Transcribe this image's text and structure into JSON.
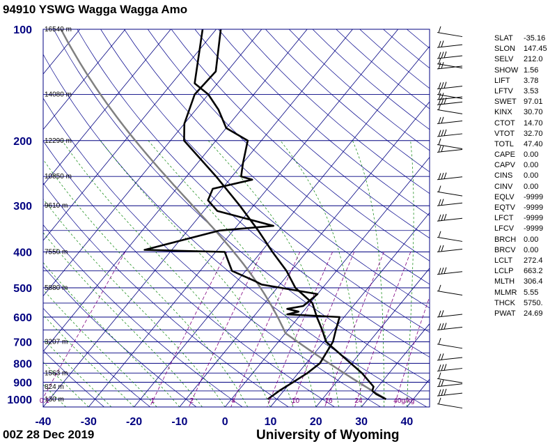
{
  "header": {
    "title": "94910 YSWG Wagga Wagga Amo"
  },
  "footer": {
    "time": "00Z 28 Dec 2019",
    "credit": "University of Wyoming"
  },
  "colors": {
    "grid": "#000080",
    "dry_adiabat": "#00008b",
    "moist_adiabat": "#008000",
    "mixing_ratio": "#800080",
    "sounding": "#000000",
    "parcel": "#808080"
  },
  "chart_data": {
    "type": "line",
    "subtype": "skew-t log-p",
    "xlabel_ticks": [
      -40,
      -30,
      -20,
      -10,
      0,
      10,
      20,
      30,
      40
    ],
    "xlim": [
      -40,
      45
    ],
    "pressure_ticks": [
      100,
      200,
      300,
      400,
      500,
      600,
      700,
      800,
      900,
      1000
    ],
    "ylim": [
      1050,
      100
    ],
    "height_labels": [
      {
        "p": 100,
        "text": "16540 m"
      },
      {
        "p": 150,
        "text": "14080 m"
      },
      {
        "p": 200,
        "text": "12290 m"
      },
      {
        "p": 250,
        "text": "10850 m"
      },
      {
        "p": 300,
        "text": "9610 m"
      },
      {
        "p": 400,
        "text": "7550 m"
      },
      {
        "p": 500,
        "text": "5880 m"
      },
      {
        "p": 700,
        "text": "3207 m"
      },
      {
        "p": 850,
        "text": "1563 m"
      },
      {
        "p": 925,
        "text": "824 m"
      },
      {
        "p": 1000,
        "text": "130 m"
      }
    ],
    "mixing_ratio_labels": [
      "0.1",
      "1",
      "2",
      "4",
      "7",
      "10",
      "16",
      "24",
      "40g/kg"
    ],
    "mixing_ratio_values": [
      0.1,
      1,
      2,
      4,
      7,
      10,
      16,
      24,
      40
    ],
    "temperature_profile": [
      {
        "p": 1000,
        "t": 34.0
      },
      {
        "p": 970,
        "t": 31.0
      },
      {
        "p": 950,
        "t": 29.5
      },
      {
        "p": 925,
        "t": 29.0
      },
      {
        "p": 850,
        "t": 24.0
      },
      {
        "p": 700,
        "t": 10.5
      },
      {
        "p": 650,
        "t": 7.5
      },
      {
        "p": 600,
        "t": 4.0
      },
      {
        "p": 550,
        "t": 0.5
      },
      {
        "p": 500,
        "t": -6.0
      },
      {
        "p": 450,
        "t": -11.0
      },
      {
        "p": 400,
        "t": -17.5
      },
      {
        "p": 350,
        "t": -24.5
      },
      {
        "p": 300,
        "t": -33.0
      },
      {
        "p": 250,
        "t": -43.5
      },
      {
        "p": 200,
        "t": -57.0
      },
      {
        "p": 180,
        "t": -60.0
      },
      {
        "p": 150,
        "t": -63.0
      },
      {
        "p": 130,
        "t": -62.5
      },
      {
        "p": 100,
        "t": -69.0
      }
    ],
    "dewpoint_profile": [
      {
        "p": 1000,
        "t": 8.0
      },
      {
        "p": 950,
        "t": 9.0
      },
      {
        "p": 900,
        "t": 10.5
      },
      {
        "p": 850,
        "t": 12.0
      },
      {
        "p": 800,
        "t": 13.0
      },
      {
        "p": 700,
        "t": 12.0
      },
      {
        "p": 650,
        "t": 10.5
      },
      {
        "p": 600,
        "t": 9.0
      },
      {
        "p": 590,
        "t": -3.0
      },
      {
        "p": 580,
        "t": -1.0
      },
      {
        "p": 570,
        "t": -4.0
      },
      {
        "p": 560,
        "t": -1.0
      },
      {
        "p": 520,
        "t": 0.0
      },
      {
        "p": 490,
        "t": -14.0
      },
      {
        "p": 480,
        "t": -16.0
      },
      {
        "p": 450,
        "t": -23.0
      },
      {
        "p": 400,
        "t": -28.0
      },
      {
        "p": 395,
        "t": -46.0
      },
      {
        "p": 350,
        "t": -33.0
      },
      {
        "p": 340,
        "t": -22.0
      },
      {
        "p": 310,
        "t": -37.0
      },
      {
        "p": 290,
        "t": -41.0
      },
      {
        "p": 270,
        "t": -42.0
      },
      {
        "p": 255,
        "t": -35.0
      },
      {
        "p": 250,
        "t": -38.0
      },
      {
        "p": 230,
        "t": -40.0
      },
      {
        "p": 200,
        "t": -43.0
      },
      {
        "p": 185,
        "t": -50.0
      },
      {
        "p": 165,
        "t": -55.0
      },
      {
        "p": 150,
        "t": -60.0
      },
      {
        "p": 140,
        "t": -65.0
      },
      {
        "p": 100,
        "t": -73.0
      }
    ],
    "wind_levels": [
      102,
      112,
      120,
      124,
      128,
      145,
      150,
      155,
      160,
      165,
      180,
      195,
      205,
      215,
      255,
      275,
      300,
      330,
      365,
      400,
      460,
      510,
      600,
      650,
      710,
      785,
      840,
      880,
      925,
      980,
      1030
    ],
    "grid": true
  },
  "indices": [
    {
      "k": "SLAT",
      "v": "-35.16"
    },
    {
      "k": "SLON",
      "v": "147.45"
    },
    {
      "k": "SELV",
      "v": "212.0"
    },
    {
      "k": "SHOW",
      "v": "1.56"
    },
    {
      "k": "LIFT",
      "v": "3.78"
    },
    {
      "k": "LFTV",
      "v": "3.53"
    },
    {
      "k": "SWET",
      "v": "97.01"
    },
    {
      "k": "KINX",
      "v": "30.70"
    },
    {
      "k": "CTOT",
      "v": "14.70"
    },
    {
      "k": "VTOT",
      "v": "32.70"
    },
    {
      "k": "TOTL",
      "v": "47.40"
    },
    {
      "k": "CAPE",
      "v": "0.00"
    },
    {
      "k": "CAPV",
      "v": "0.00"
    },
    {
      "k": "CINS",
      "v": "0.00"
    },
    {
      "k": "CINV",
      "v": "0.00"
    },
    {
      "k": "EQLV",
      "v": "-9999"
    },
    {
      "k": "EQTV",
      "v": "-9999"
    },
    {
      "k": "LFCT",
      "v": "-9999"
    },
    {
      "k": "LFCV",
      "v": "-9999"
    },
    {
      "k": "BRCH",
      "v": "0.00"
    },
    {
      "k": "BRCV",
      "v": "0.00"
    },
    {
      "k": "LCLT",
      "v": "272.4"
    },
    {
      "k": "LCLP",
      "v": "663.2"
    },
    {
      "k": "MLTH",
      "v": "306.4"
    },
    {
      "k": "MLMR",
      "v": "5.55"
    },
    {
      "k": "THCK",
      "v": "5750."
    },
    {
      "k": "PWAT",
      "v": "24.69"
    }
  ]
}
